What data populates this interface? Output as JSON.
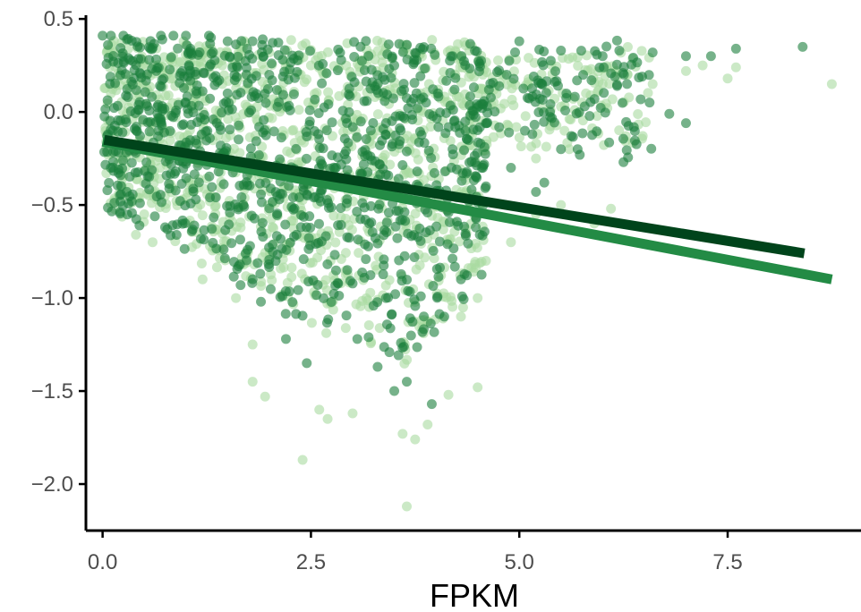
{
  "chart_data": {
    "type": "scatter",
    "title": "",
    "xlabel": "FPKM",
    "ylabel": "",
    "xlim": [
      -0.2,
      9.1
    ],
    "ylim": [
      -2.25,
      0.52
    ],
    "xticks": [
      0,
      2.5,
      5,
      7.5
    ],
    "xtick_labels": [
      "0.0",
      "2.5",
      "5.0",
      "7.5"
    ],
    "yticks": [
      0.5,
      0,
      -0.5,
      -1,
      -1.5,
      -2
    ],
    "ytick_labels": [
      "0.5",
      "0.0",
      "−0.5",
      "−1.0",
      "−1.5",
      "−2.0"
    ],
    "grid": false,
    "legend": "none",
    "series": [
      {
        "color": "#a8dba0",
        "opacity": 0.6,
        "fit": {
          "x": [
            0.0,
            8.75
          ],
          "y": [
            -0.16,
            -0.9
          ],
          "color": "#238b45"
        },
        "points": [
          {
            "x": 0.05,
            "y": 0.32
          },
          {
            "x": 0.1,
            "y": 0.1
          },
          {
            "x": 0.3,
            "y": -0.2
          },
          {
            "x": 0.4,
            "y": -0.66
          },
          {
            "x": 0.6,
            "y": -0.7
          },
          {
            "x": 0.5,
            "y": -0.55
          },
          {
            "x": 1.2,
            "y": -0.9
          },
          {
            "x": 1.6,
            "y": -1.0
          },
          {
            "x": 1.8,
            "y": -1.25
          },
          {
            "x": 1.8,
            "y": -1.45
          },
          {
            "x": 1.95,
            "y": -1.53
          },
          {
            "x": 2.4,
            "y": -1.87
          },
          {
            "x": 2.6,
            "y": -1.6
          },
          {
            "x": 2.7,
            "y": -1.65
          },
          {
            "x": 3.0,
            "y": -1.62
          },
          {
            "x": 3.6,
            "y": -1.73
          },
          {
            "x": 3.75,
            "y": -1.76
          },
          {
            "x": 3.9,
            "y": -1.68
          },
          {
            "x": 3.65,
            "y": -2.12
          },
          {
            "x": 4.15,
            "y": -1.52
          },
          {
            "x": 4.5,
            "y": -1.48
          },
          {
            "x": 4.3,
            "y": -1.1
          },
          {
            "x": 4.5,
            "y": -1.0
          },
          {
            "x": 4.6,
            "y": -0.8
          },
          {
            "x": 4.9,
            "y": -0.7
          },
          {
            "x": 5.2,
            "y": -0.55
          },
          {
            "x": 5.5,
            "y": -0.5
          },
          {
            "x": 5.9,
            "y": -0.6
          },
          {
            "x": 6.1,
            "y": -0.52
          },
          {
            "x": 6.5,
            "y": -0.62
          },
          {
            "x": 5.2,
            "y": -0.25
          },
          {
            "x": 5.6,
            "y": -0.2
          },
          {
            "x": 5.8,
            "y": 0.1
          },
          {
            "x": 6.0,
            "y": 0.15
          },
          {
            "x": 6.3,
            "y": 0.2
          },
          {
            "x": 6.6,
            "y": 0.15
          },
          {
            "x": 7.0,
            "y": 0.22
          },
          {
            "x": 7.2,
            "y": 0.25
          },
          {
            "x": 7.5,
            "y": 0.18
          },
          {
            "x": 7.6,
            "y": 0.24
          },
          {
            "x": 8.75,
            "y": 0.15
          },
          {
            "x": 1.0,
            "y": 0.36
          },
          {
            "x": 2.0,
            "y": 0.32
          },
          {
            "x": 2.5,
            "y": 0.25
          },
          {
            "x": 3.0,
            "y": 0.1
          }
        ]
      },
      {
        "color": "#1a7f3c",
        "opacity": 0.6,
        "fit": {
          "x": [
            0.02,
            8.42
          ],
          "y": [
            -0.15,
            -0.76
          ],
          "color": "#00441b"
        },
        "points": [
          {
            "x": 0.0,
            "y": 0.41
          },
          {
            "x": 0.1,
            "y": 0.41
          },
          {
            "x": 0.25,
            "y": 0.41
          },
          {
            "x": 0.7,
            "y": 0.41
          },
          {
            "x": 0.85,
            "y": 0.41
          },
          {
            "x": 1.0,
            "y": 0.41
          },
          {
            "x": 1.3,
            "y": 0.4
          },
          {
            "x": 1.5,
            "y": 0.38
          },
          {
            "x": 1.8,
            "y": 0.38
          },
          {
            "x": 0.35,
            "y": -0.48
          },
          {
            "x": 0.75,
            "y": -0.62
          },
          {
            "x": 1.9,
            "y": -1.02
          },
          {
            "x": 2.2,
            "y": -1.22
          },
          {
            "x": 2.45,
            "y": -1.35
          },
          {
            "x": 3.3,
            "y": -1.37
          },
          {
            "x": 3.5,
            "y": -1.5
          },
          {
            "x": 3.65,
            "y": -1.45
          },
          {
            "x": 3.95,
            "y": -1.57
          },
          {
            "x": 4.1,
            "y": -1.1
          },
          {
            "x": 4.3,
            "y": -0.9
          },
          {
            "x": 4.6,
            "y": -0.4
          },
          {
            "x": 4.9,
            "y": -0.3
          },
          {
            "x": 5.2,
            "y": -0.43
          },
          {
            "x": 5.3,
            "y": -0.38
          },
          {
            "x": 5.5,
            "y": -0.2
          },
          {
            "x": 5.7,
            "y": -0.2
          },
          {
            "x": 6.25,
            "y": -0.27
          },
          {
            "x": 6.8,
            "y": -0.01
          },
          {
            "x": 7.0,
            "y": -0.06
          },
          {
            "x": 5.0,
            "y": 0.38
          },
          {
            "x": 5.5,
            "y": 0.33
          },
          {
            "x": 6.0,
            "y": 0.3
          },
          {
            "x": 6.2,
            "y": 0.33
          },
          {
            "x": 6.6,
            "y": 0.32
          },
          {
            "x": 7.0,
            "y": 0.3
          },
          {
            "x": 7.3,
            "y": 0.3
          },
          {
            "x": 7.6,
            "y": 0.34
          },
          {
            "x": 8.4,
            "y": 0.35
          },
          {
            "x": 4.2,
            "y": 0.3
          },
          {
            "x": 3.5,
            "y": 0.25
          },
          {
            "x": 2.0,
            "y": 0.2
          },
          {
            "x": 1.5,
            "y": 0.1
          },
          {
            "x": 2.8,
            "y": -0.3
          },
          {
            "x": 3.2,
            "y": -0.6
          },
          {
            "x": 3.4,
            "y": -1.0
          }
        ]
      }
    ]
  }
}
